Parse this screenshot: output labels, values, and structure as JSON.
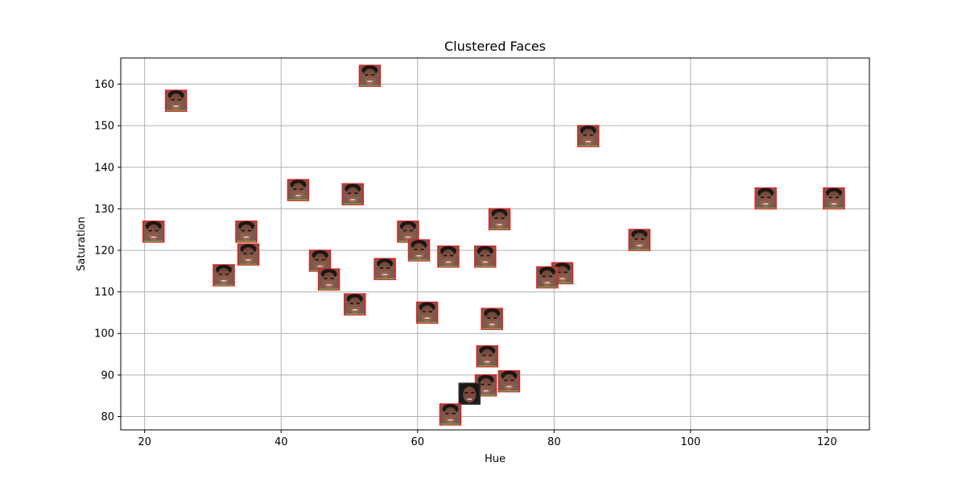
{
  "chart_data": {
    "type": "scatter",
    "title": "Clustered Faces",
    "xlabel": "Hue",
    "ylabel": "Saturation",
    "xlim": [
      16.5,
      126.2
    ],
    "ylim": [
      76.8,
      166.3
    ],
    "xticks": [
      20,
      40,
      60,
      80,
      100,
      120
    ],
    "yticks": [
      80,
      90,
      100,
      110,
      120,
      130,
      140,
      150,
      160
    ],
    "grid": true,
    "marker": "face-thumbnail",
    "points": [
      {
        "x": 53.0,
        "y": 162.0
      },
      {
        "x": 24.6,
        "y": 156.0
      },
      {
        "x": 85.0,
        "y": 147.5
      },
      {
        "x": 42.5,
        "y": 134.5
      },
      {
        "x": 50.5,
        "y": 133.5
      },
      {
        "x": 111.0,
        "y": 132.5
      },
      {
        "x": 121.0,
        "y": 132.5
      },
      {
        "x": 72.0,
        "y": 127.5
      },
      {
        "x": 21.3,
        "y": 124.5
      },
      {
        "x": 34.9,
        "y": 124.5
      },
      {
        "x": 58.6,
        "y": 124.5
      },
      {
        "x": 92.5,
        "y": 122.5
      },
      {
        "x": 60.2,
        "y": 120.0
      },
      {
        "x": 35.2,
        "y": 119.0
      },
      {
        "x": 64.5,
        "y": 118.5
      },
      {
        "x": 69.9,
        "y": 118.5
      },
      {
        "x": 45.7,
        "y": 117.5
      },
      {
        "x": 55.2,
        "y": 115.5
      },
      {
        "x": 81.2,
        "y": 114.5
      },
      {
        "x": 31.6,
        "y": 114.0
      },
      {
        "x": 79.0,
        "y": 113.5
      },
      {
        "x": 47.0,
        "y": 113.0
      },
      {
        "x": 50.8,
        "y": 107.0
      },
      {
        "x": 61.4,
        "y": 105.0
      },
      {
        "x": 70.9,
        "y": 103.5
      },
      {
        "x": 70.2,
        "y": 94.5
      },
      {
        "x": 73.4,
        "y": 88.5
      },
      {
        "x": 70.0,
        "y": 87.5
      },
      {
        "x": 67.6,
        "y": 85.5
      },
      {
        "x": 64.8,
        "y": 80.5
      }
    ]
  }
}
